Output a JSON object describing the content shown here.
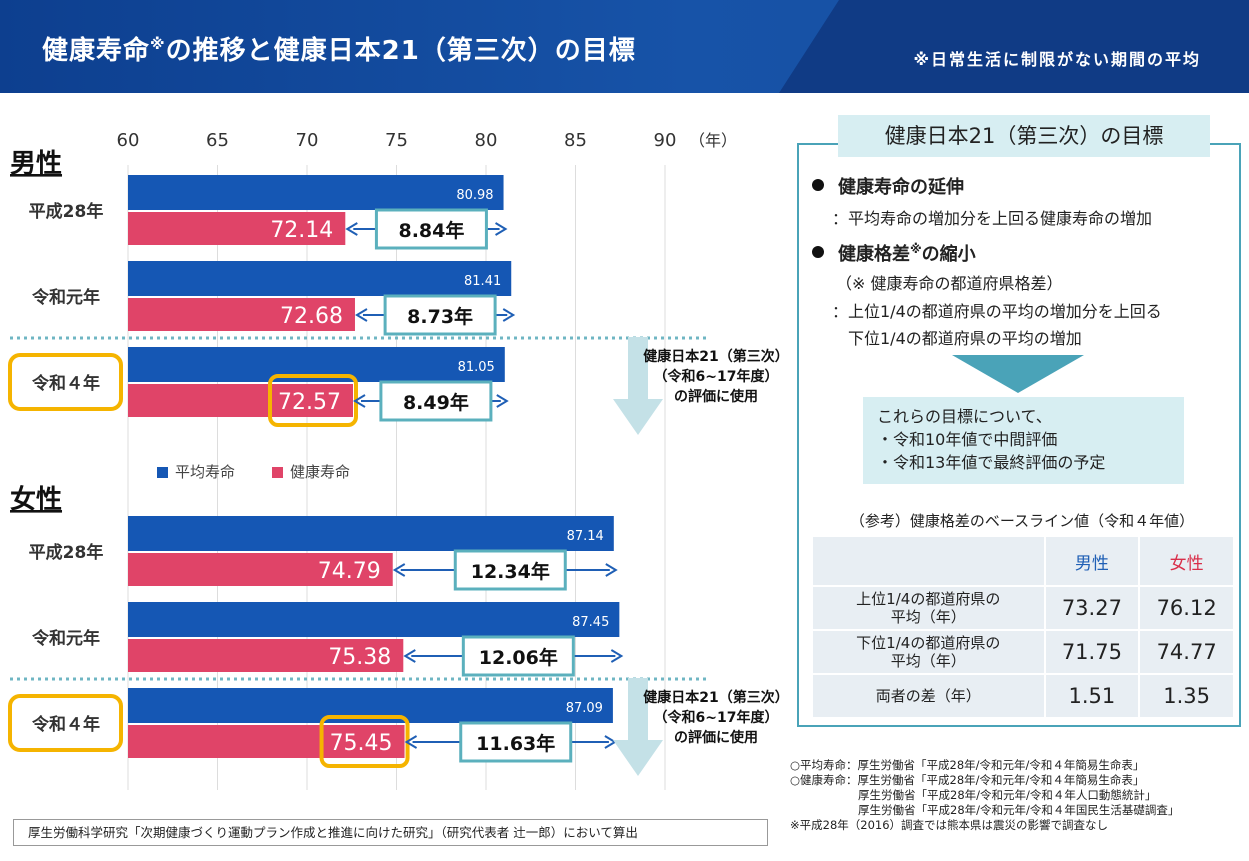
{
  "header": {
    "title_pre": "健康寿命",
    "title_mark": "※",
    "title_post": "の推移と健康日本21（第三次）の目標",
    "note": "※日常生活に制限がない期間の平均"
  },
  "chart_data": {
    "type": "bar",
    "orientation": "horizontal",
    "axis": {
      "ticks": [
        60,
        65,
        70,
        75,
        80,
        85,
        90
      ],
      "unit": "（年）",
      "xlim": [
        60,
        90
      ],
      "grid": true
    },
    "legend": [
      {
        "name": "平均寿命",
        "color": "#1557b4"
      },
      {
        "name": "健康寿命",
        "color": "#e04468"
      }
    ],
    "groups": [
      {
        "label": "男性",
        "rows": [
          {
            "year": "平成28年",
            "avg": 80.98,
            "healthy": 72.14,
            "gap": "8.84年",
            "highlight": false
          },
          {
            "year": "令和元年",
            "avg": 81.41,
            "healthy": 72.68,
            "gap": "8.73年",
            "highlight": false
          },
          {
            "year": "令和４年",
            "avg": 81.05,
            "healthy": 72.57,
            "gap": "8.49年",
            "highlight": true
          }
        ],
        "eval_note": [
          "健康日本21（第三次）",
          "（令和6~17年度）",
          "の評価に使用"
        ]
      },
      {
        "label": "女性",
        "rows": [
          {
            "year": "平成28年",
            "avg": 87.14,
            "healthy": 74.79,
            "gap": "12.34年",
            "highlight": false
          },
          {
            "year": "令和元年",
            "avg": 87.45,
            "healthy": 75.38,
            "gap": "12.06年",
            "highlight": false
          },
          {
            "year": "令和４年",
            "avg": 87.09,
            "healthy": 75.45,
            "gap": "11.63年",
            "highlight": true
          }
        ],
        "eval_note": [
          "健康日本21（第三次）",
          "（令和6~17年度）",
          "の評価に使用"
        ]
      }
    ]
  },
  "goals": {
    "title": "健康日本21（第三次）の目標",
    "goal1": "健康寿命の延伸",
    "goal1_desc": "：平均寿命の増加分を上回る健康寿命の増加",
    "goal2_pre": "健康格差",
    "goal2_mark": "※",
    "goal2_post": "の縮小",
    "goal2_note": "（※ 健康寿命の都道府県格差）",
    "goal2_desc1": "：上位1/4の都道府県の平均の増加分を上回る",
    "goal2_desc2": "下位1/4の都道府県の平均の増加",
    "eval_title": "これらの目標について、",
    "eval_1": "・令和10年値で中間評価",
    "eval_2": "・令和13年値で最終評価の予定"
  },
  "reference": {
    "title": "（参考）健康格差のベースライン値（令和４年値）",
    "col_male": "男性",
    "col_female": "女性",
    "rows": [
      {
        "label1": "上位1/4の都道府県の",
        "label2": "平均（年）",
        "male": "73.27",
        "female": "76.12"
      },
      {
        "label1": "下位1/4の都道府県の",
        "label2": "平均（年）",
        "male": "71.75",
        "female": "74.77"
      },
      {
        "label1": "両者の差（年）",
        "label2": "",
        "male": "1.51",
        "female": "1.35"
      }
    ]
  },
  "sources": {
    "line1": "○平均寿命：厚生労働省「平成28年/令和元年/令和４年簡易生命表」",
    "line2": "○健康寿命：厚生労働省「平成28年/令和元年/令和４年簡易生命表」",
    "line3": "厚生労働省「平成28年/令和元年/令和４年人口動態統計」",
    "line4": "厚生労働省「平成28年/令和元年/令和４年国民生活基礎調査」",
    "line5": "※平成28年（2016）調査では熊本県は震災の影響で調査なし"
  },
  "footer": "厚生労働科学研究「次期健康づくり運動プラン作成と推進に向けた研究」（研究代表者 辻一郎）において算出"
}
